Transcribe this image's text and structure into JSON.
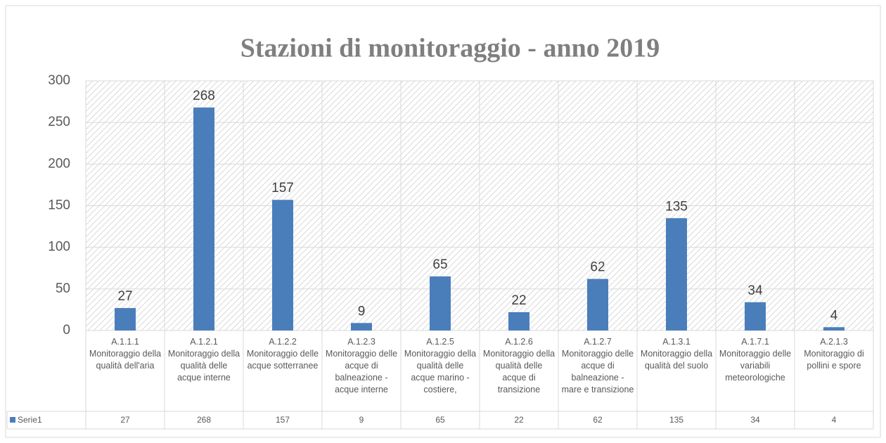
{
  "chart_data": {
    "type": "bar",
    "title": "Stazioni di monitoraggio - anno 2019",
    "categories": [
      "A.1.1.1 Monitoraggio della qualità dell'aria",
      "A.1.2.1 Monitoraggio della qualità delle acque interne",
      "A.1.2.2 Monitoraggio delle acque sotterranee",
      "A.1.2.3 Monitoraggio delle acque di balneazione - acque interne",
      "A.1.2.5 Monitoraggio della qualità delle acque marino - costiere,",
      "A.1.2.6 Monitoraggio della qualità delle acque di transizione",
      "A.1.2.7 Monitoraggio delle acque di balneazione - mare e transizione",
      "A.1.3.1 Monitoraggio della qualità del suolo",
      "A.1.7.1 Monitoraggio delle variabili meteorologiche",
      "A.2.1.3 Monitoraggio di pollini e spore"
    ],
    "series": [
      {
        "name": "Serie1",
        "color": "#4a7ebb",
        "values": [
          27,
          268,
          157,
          9,
          65,
          22,
          62,
          135,
          34,
          4
        ]
      }
    ],
    "ylim": [
      0,
      300
    ],
    "yticks": [
      0,
      50,
      100,
      150,
      200,
      250,
      300
    ],
    "grid": true
  }
}
